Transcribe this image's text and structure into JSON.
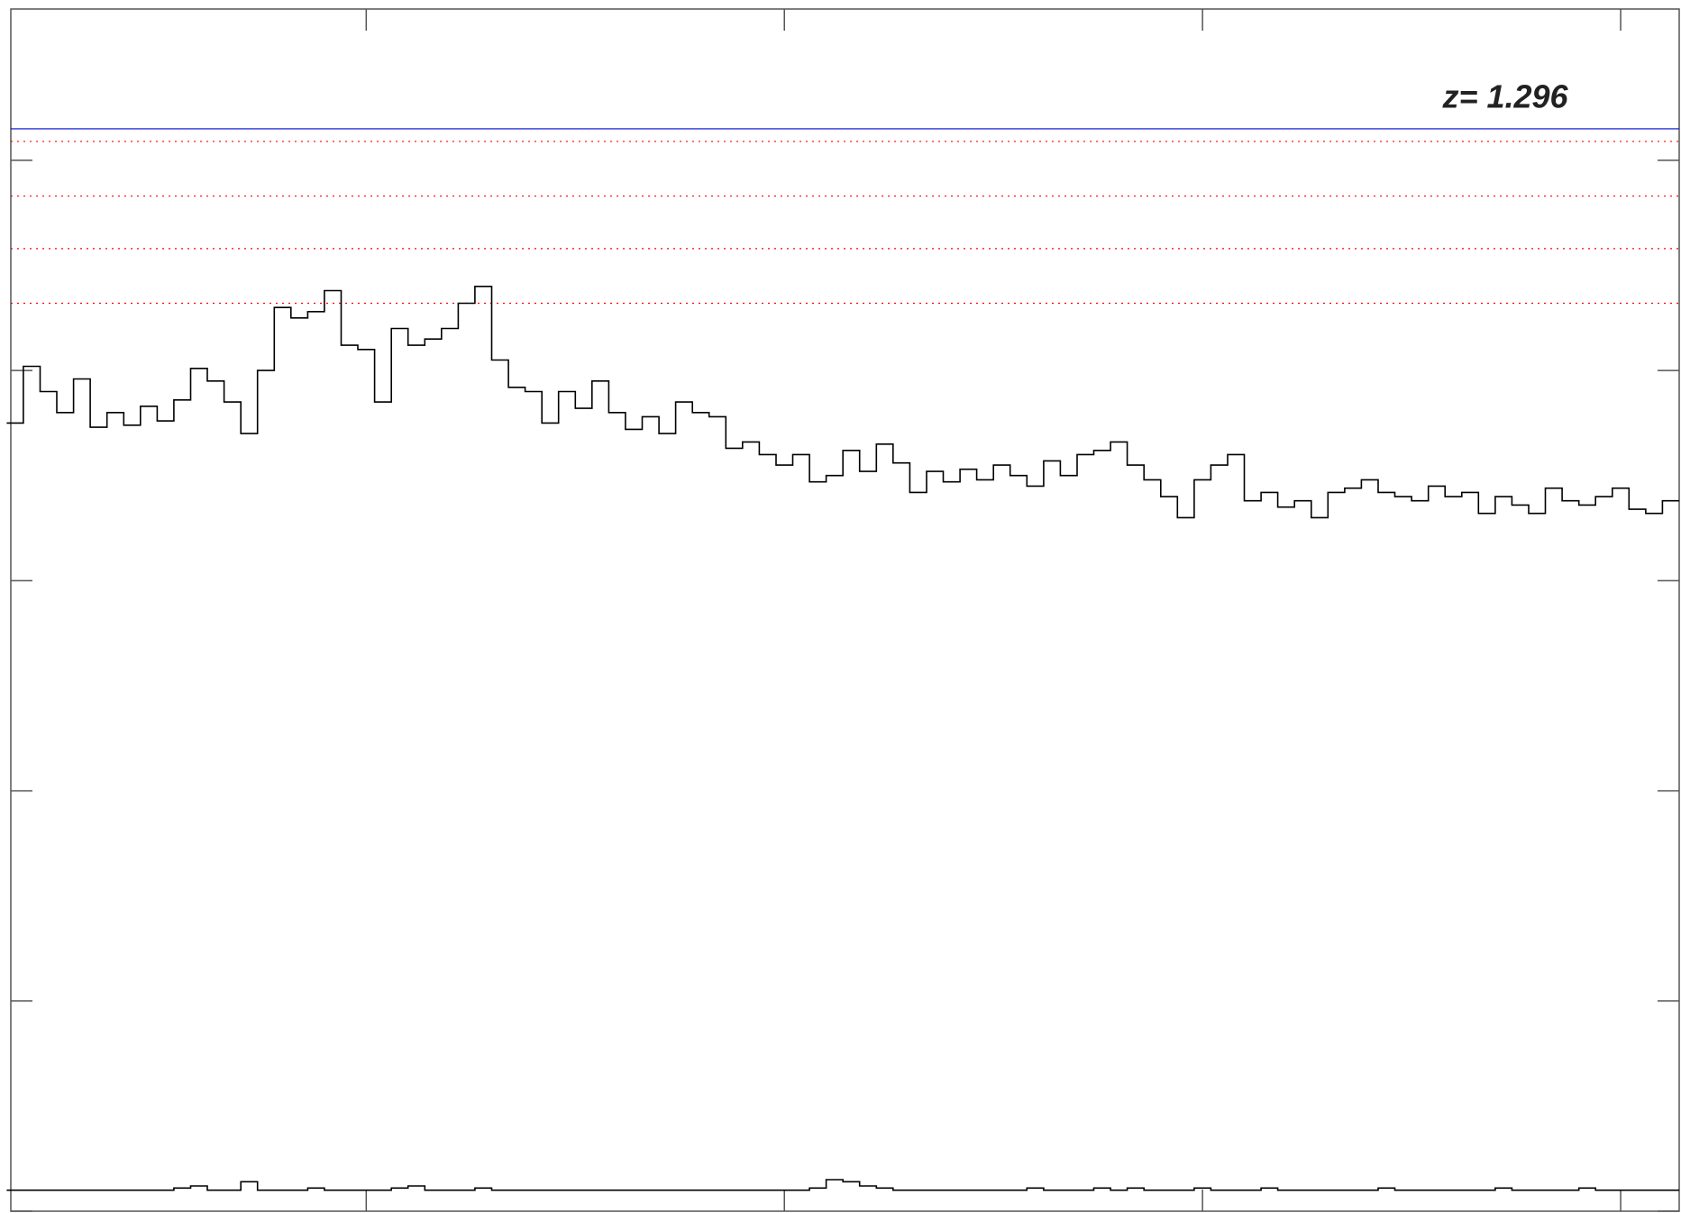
{
  "chart_data": {
    "type": "step",
    "annotation": "z= 1.296",
    "xlim": [
      0.15,
      4.14
    ],
    "xticks": [
      1,
      2,
      3,
      4
    ],
    "ylim": [
      0,
      5.72
    ],
    "yticks": [
      0,
      1,
      2,
      3,
      4,
      5
    ],
    "reference_lines": [
      {
        "value": 5.15,
        "color": "#0000cc",
        "style": "solid"
      },
      {
        "value": 5.09,
        "color": "#ff0000",
        "style": "dotted"
      },
      {
        "value": 4.83,
        "color": "#ff0000",
        "style": "dotted"
      },
      {
        "value": 4.58,
        "color": "#ff0000",
        "style": "dotted"
      },
      {
        "value": 4.32,
        "color": "#ff0000",
        "style": "dotted"
      }
    ],
    "x": [
      0.16,
      0.2,
      0.24,
      0.28,
      0.32,
      0.36,
      0.4,
      0.44,
      0.48,
      0.52,
      0.56,
      0.6,
      0.64,
      0.68,
      0.72,
      0.76,
      0.8,
      0.84,
      0.88,
      0.92,
      0.96,
      1.0,
      1.04,
      1.08,
      1.12,
      1.16,
      1.2,
      1.24,
      1.28,
      1.32,
      1.36,
      1.4,
      1.44,
      1.48,
      1.52,
      1.56,
      1.6,
      1.64,
      1.68,
      1.72,
      1.76,
      1.8,
      1.84,
      1.88,
      1.92,
      1.96,
      2.0,
      2.04,
      2.08,
      2.12,
      2.16,
      2.2,
      2.24,
      2.28,
      2.32,
      2.36,
      2.4,
      2.44,
      2.48,
      2.52,
      2.56,
      2.6,
      2.64,
      2.68,
      2.72,
      2.76,
      2.8,
      2.84,
      2.88,
      2.92,
      2.96,
      3.0,
      3.04,
      3.08,
      3.12,
      3.16,
      3.2,
      3.24,
      3.28,
      3.32,
      3.36,
      3.4,
      3.44,
      3.48,
      3.52,
      3.56,
      3.6,
      3.64,
      3.68,
      3.72,
      3.76,
      3.8,
      3.84,
      3.88,
      3.92,
      3.96,
      4.0,
      4.04,
      4.08,
      4.12
    ],
    "series": [
      {
        "color": "#000000",
        "values": [
          3.75,
          4.02,
          3.9,
          3.8,
          3.96,
          3.73,
          3.8,
          3.74,
          3.83,
          3.76,
          3.86,
          4.01,
          3.95,
          3.85,
          3.7,
          4.0,
          4.3,
          4.25,
          4.28,
          4.38,
          4.12,
          4.1,
          3.85,
          4.2,
          4.12,
          4.15,
          4.2,
          4.32,
          4.4,
          4.05,
          3.92,
          3.9,
          3.75,
          3.9,
          3.82,
          3.95,
          3.8,
          3.72,
          3.78,
          3.7,
          3.85,
          3.8,
          3.78,
          3.63,
          3.66,
          3.6,
          3.55,
          3.6,
          3.47,
          3.5,
          3.62,
          3.52,
          3.65,
          3.56,
          3.42,
          3.52,
          3.47,
          3.53,
          3.48,
          3.55,
          3.5,
          3.45,
          3.57,
          3.5,
          3.6,
          3.62,
          3.66,
          3.55,
          3.48,
          3.4,
          3.3,
          3.48,
          3.55,
          3.6,
          3.38,
          3.42,
          3.35,
          3.38,
          3.3,
          3.42,
          3.44,
          3.48,
          3.42,
          3.4,
          3.38,
          3.45,
          3.4,
          3.42,
          3.32,
          3.4,
          3.36,
          3.32,
          3.44,
          3.38,
          3.36,
          3.4,
          3.44,
          3.34,
          3.32,
          3.38
        ]
      },
      {
        "color": "#000000",
        "values": [
          0.1,
          0.1,
          0.1,
          0.1,
          0.1,
          0.1,
          0.1,
          0.1,
          0.1,
          0.1,
          0.11,
          0.12,
          0.1,
          0.1,
          0.14,
          0.1,
          0.1,
          0.1,
          0.11,
          0.1,
          0.1,
          0.1,
          0.1,
          0.11,
          0.12,
          0.1,
          0.1,
          0.1,
          0.11,
          0.1,
          0.1,
          0.1,
          0.1,
          0.1,
          0.1,
          0.1,
          0.1,
          0.1,
          0.1,
          0.1,
          0.1,
          0.1,
          0.1,
          0.1,
          0.1,
          0.1,
          0.1,
          0.1,
          0.11,
          0.15,
          0.14,
          0.12,
          0.11,
          0.1,
          0.1,
          0.1,
          0.1,
          0.1,
          0.1,
          0.1,
          0.1,
          0.11,
          0.1,
          0.1,
          0.1,
          0.11,
          0.1,
          0.11,
          0.1,
          0.1,
          0.1,
          0.11,
          0.1,
          0.1,
          0.1,
          0.11,
          0.1,
          0.1,
          0.1,
          0.1,
          0.1,
          0.1,
          0.11,
          0.1,
          0.1,
          0.1,
          0.1,
          0.1,
          0.1,
          0.11,
          0.1,
          0.1,
          0.1,
          0.1,
          0.11,
          0.1,
          0.1,
          0.1,
          0.1,
          0.1
        ]
      }
    ]
  }
}
